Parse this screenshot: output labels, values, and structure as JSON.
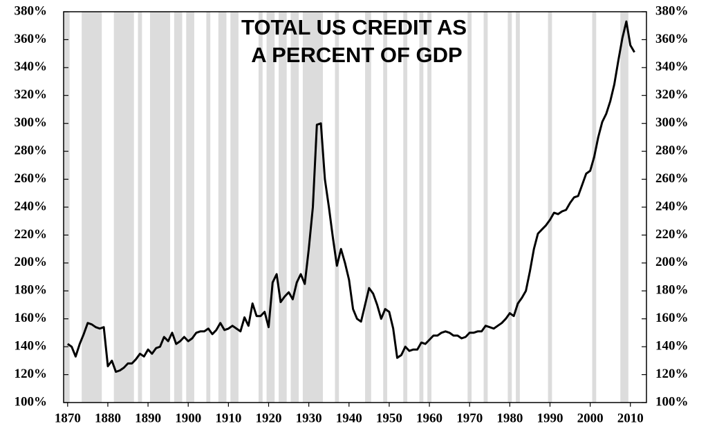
{
  "chart_data": {
    "type": "line",
    "title": [
      "TOTAL US CREDIT AS",
      "A PERCENT OF GDP"
    ],
    "x": [
      1870,
      1871,
      1872,
      1873,
      1874,
      1875,
      1876,
      1877,
      1878,
      1879,
      1880,
      1881,
      1882,
      1883,
      1884,
      1885,
      1886,
      1887,
      1888,
      1889,
      1890,
      1891,
      1892,
      1893,
      1894,
      1895,
      1896,
      1897,
      1898,
      1899,
      1900,
      1901,
      1902,
      1903,
      1904,
      1905,
      1906,
      1907,
      1908,
      1909,
      1910,
      1911,
      1912,
      1913,
      1914,
      1915,
      1916,
      1917,
      1918,
      1919,
      1920,
      1921,
      1922,
      1923,
      1924,
      1925,
      1926,
      1927,
      1928,
      1929,
      1930,
      1931,
      1932,
      1933,
      1934,
      1935,
      1936,
      1937,
      1938,
      1939,
      1940,
      1941,
      1942,
      1943,
      1944,
      1945,
      1946,
      1947,
      1948,
      1949,
      1950,
      1951,
      1952,
      1953,
      1954,
      1955,
      1956,
      1957,
      1958,
      1959,
      1960,
      1961,
      1962,
      1963,
      1964,
      1965,
      1966,
      1967,
      1968,
      1969,
      1970,
      1971,
      1972,
      1973,
      1974,
      1975,
      1976,
      1977,
      1978,
      1979,
      1980,
      1981,
      1982,
      1983,
      1984,
      1985,
      1986,
      1987,
      1988,
      1989,
      1990,
      1991,
      1992,
      1993,
      1994,
      1995,
      1996,
      1997,
      1998,
      1999,
      2000,
      2001,
      2002,
      2003,
      2004,
      2005,
      2006,
      2007,
      2008,
      2009,
      2010,
      2011
    ],
    "series": [
      {
        "color": "#000000",
        "values": [
          142,
          140,
          133,
          142,
          149,
          157,
          156,
          154,
          153,
          154,
          126,
          130,
          122,
          123,
          125,
          128,
          128,
          131,
          135,
          133,
          138,
          135,
          139,
          140,
          147,
          144,
          150,
          142,
          144,
          147,
          144,
          146,
          150,
          151,
          151,
          153,
          149,
          152,
          157,
          152,
          153,
          155,
          153,
          151,
          161,
          155,
          171,
          162,
          162,
          165,
          154,
          186,
          192,
          172,
          176,
          179,
          174,
          186,
          192,
          185,
          210,
          240,
          299,
          300,
          260,
          240,
          218,
          198,
          210,
          200,
          188,
          167,
          160,
          158,
          170,
          182,
          178,
          170,
          160,
          167,
          165,
          153,
          132,
          134,
          140,
          137,
          138,
          138,
          143,
          142,
          145,
          148,
          148,
          150,
          151,
          150,
          148,
          148,
          146,
          147,
          150,
          150,
          151,
          151,
          155,
          154,
          153,
          155,
          157,
          160,
          164,
          162,
          171,
          175,
          180,
          194,
          210,
          221,
          224,
          227,
          231,
          236,
          235,
          237,
          238,
          243,
          247,
          248,
          256,
          264,
          266,
          276,
          290,
          301,
          307,
          316,
          328,
          345,
          361,
          373,
          356,
          351
        ]
      }
    ],
    "shaded_ranges": [
      [
        1869,
        1870.5
      ],
      [
        1873.5,
        1878.5
      ],
      [
        1881.5,
        1886.5
      ],
      [
        1887.5,
        1888.5
      ],
      [
        1890.5,
        1895.5
      ],
      [
        1896.5,
        1898.5
      ],
      [
        1899.5,
        1901.5
      ],
      [
        1904.5,
        1905.5
      ],
      [
        1907.5,
        1909.5
      ],
      [
        1910.5,
        1912.5
      ],
      [
        1917.5,
        1918.5
      ],
      [
        1919.5,
        1921.5
      ],
      [
        1922.5,
        1924.5
      ],
      [
        1925.5,
        1927.5
      ],
      [
        1928.5,
        1933.5
      ],
      [
        1936.5,
        1937.5
      ],
      [
        1944,
        1945.5
      ],
      [
        1948.5,
        1949.5
      ],
      [
        1953.5,
        1954.5
      ],
      [
        1957.5,
        1958.5
      ],
      [
        1959.5,
        1960.5
      ],
      [
        1969.5,
        1970.5
      ],
      [
        1973.5,
        1974.5
      ],
      [
        1979.5,
        1980.5
      ],
      [
        1981.5,
        1982.5
      ],
      [
        1989.5,
        1990.5
      ],
      [
        2000.5,
        2001.5
      ],
      [
        2007.5,
        2009.5
      ]
    ],
    "shade_color": "#dcdcdc",
    "xlim": [
      1869,
      2014
    ],
    "ylim": [
      100,
      380
    ],
    "xticks": [
      1870,
      1880,
      1890,
      1900,
      1910,
      1920,
      1930,
      1940,
      1950,
      1960,
      1970,
      1980,
      1990,
      2000,
      2010
    ],
    "yticks": [
      {
        "value": 100,
        "label": "100%"
      },
      {
        "value": 120,
        "label": "120%"
      },
      {
        "value": 140,
        "label": "140%"
      },
      {
        "value": 160,
        "label": "160%"
      },
      {
        "value": 180,
        "label": "180%"
      },
      {
        "value": 200,
        "label": "200%"
      },
      {
        "value": 220,
        "label": "220%"
      },
      {
        "value": 240,
        "label": "240%"
      },
      {
        "value": 260,
        "label": "260%"
      },
      {
        "value": 280,
        "label": "280%"
      },
      {
        "value": 300,
        "label": "300%"
      },
      {
        "value": 320,
        "label": "320%"
      },
      {
        "value": 340,
        "label": "340%"
      },
      {
        "value": 360,
        "label": "360%"
      },
      {
        "value": 380,
        "label": "380%"
      }
    ]
  }
}
